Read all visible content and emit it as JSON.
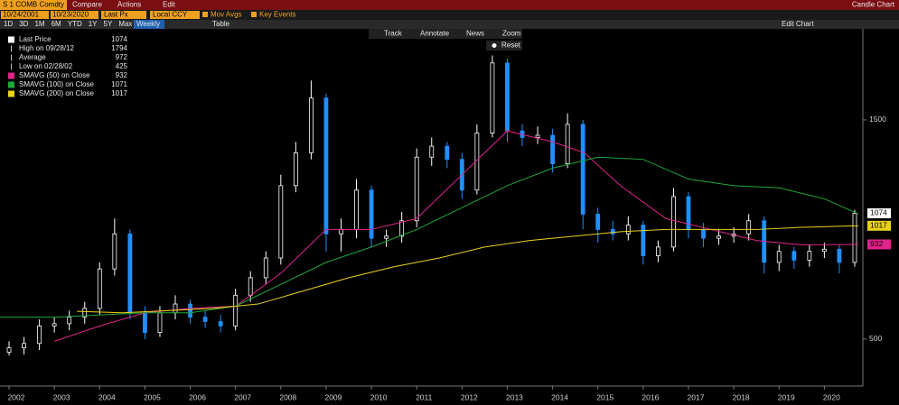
{
  "ui": {
    "ticker": "S 1 COMB Comdty",
    "menus": [
      "Compare",
      "Actions",
      "Edit"
    ],
    "chart_name": "Candle Chart",
    "start_date": "10/24/2001",
    "end_date": "10/23/2020",
    "price_field": "Last Px",
    "currency": "Local CCY",
    "toggles": [
      "Mov Avgs",
      "Key Events"
    ],
    "periods": [
      "1D",
      "3D",
      "1M",
      "6M",
      "YTD",
      "1Y",
      "5Y",
      "Max"
    ],
    "frequency": "Weekly",
    "table": "Table",
    "edit_chart": "Edit Chart",
    "tools": [
      "Track",
      "Annotate",
      "News",
      "Zoom"
    ],
    "reset": "Reset"
  },
  "chart_data": {
    "type": "candlestick",
    "candles": {
      "name": "Last Price",
      "up_color": "#ffffff",
      "down_color": "#1e90ff",
      "x": [
        2002.0,
        2002.33,
        2002.67,
        2003.0,
        2003.33,
        2003.67,
        2004.0,
        2004.33,
        2004.67,
        2005.0,
        2005.33,
        2005.67,
        2006.0,
        2006.33,
        2006.67,
        2007.0,
        2007.33,
        2007.67,
        2008.0,
        2008.33,
        2008.67,
        2009.0,
        2009.33,
        2009.67,
        2010.0,
        2010.33,
        2010.67,
        2011.0,
        2011.33,
        2011.67,
        2012.0,
        2012.33,
        2012.67,
        2013.0,
        2013.33,
        2013.67,
        2014.0,
        2014.33,
        2014.67,
        2015.0,
        2015.33,
        2015.67,
        2016.0,
        2016.33,
        2016.67,
        2017.0,
        2017.33,
        2017.67,
        2018.0,
        2018.33,
        2018.67,
        2019.0,
        2019.33,
        2019.67,
        2020.0,
        2020.33,
        2020.67
      ],
      "open": [
        440,
        460,
        480,
        560,
        570,
        600,
        640,
        820,
        980,
        620,
        530,
        620,
        660,
        600,
        580,
        560,
        700,
        780,
        870,
        1200,
        1350,
        1600,
        980,
        1000,
        1180,
        960,
        970,
        1040,
        1330,
        1380,
        1320,
        1180,
        1440,
        1760,
        1450,
        1420,
        1430,
        1300,
        1480,
        1070,
        1000,
        980,
        1020,
        880,
        920,
        1150,
        1000,
        960,
        970,
        980,
        1040,
        850,
        900,
        860,
        900,
        910,
        850
      ],
      "high": [
        490,
        510,
        590,
        600,
        630,
        670,
        850,
        1050,
        1000,
        650,
        650,
        700,
        680,
        630,
        610,
        730,
        810,
        900,
        1250,
        1400,
        1680,
        1620,
        1050,
        1230,
        1200,
        1000,
        1080,
        1370,
        1420,
        1400,
        1350,
        1480,
        1794,
        1780,
        1480,
        1470,
        1460,
        1530,
        1500,
        1100,
        1040,
        1060,
        1040,
        950,
        1190,
        1170,
        1030,
        1000,
        1010,
        1070,
        1060,
        930,
        920,
        930,
        940,
        930,
        1090
      ],
      "low": [
        425,
        430,
        450,
        530,
        540,
        570,
        610,
        790,
        590,
        500,
        510,
        590,
        570,
        550,
        530,
        540,
        670,
        750,
        840,
        1170,
        1320,
        900,
        900,
        960,
        920,
        920,
        940,
        1010,
        1290,
        1280,
        1140,
        1160,
        1420,
        1400,
        1380,
        1390,
        1260,
        1280,
        1000,
        940,
        950,
        950,
        840,
        850,
        900,
        960,
        920,
        930,
        940,
        950,
        800,
        810,
        820,
        830,
        870,
        800,
        830
      ],
      "close": [
        460,
        480,
        560,
        570,
        600,
        640,
        820,
        980,
        620,
        530,
        620,
        660,
        600,
        580,
        560,
        700,
        780,
        870,
        1200,
        1350,
        1600,
        980,
        1000,
        1180,
        960,
        970,
        1040,
        1330,
        1380,
        1320,
        1180,
        1440,
        1760,
        1450,
        1420,
        1430,
        1300,
        1480,
        1070,
        1000,
        980,
        1020,
        880,
        920,
        1150,
        1000,
        960,
        970,
        980,
        1040,
        850,
        900,
        860,
        900,
        910,
        850,
        1074
      ]
    },
    "stats": {
      "high_label": "High on 09/28/12",
      "average_label": "Average",
      "average": 972,
      "low_label": "Low on 02/28/02"
    },
    "series": [
      {
        "name": "SMAVG (50)  on Close",
        "color": "#e0248c",
        "x": [
          2003.0,
          2004.0,
          2005.0,
          2006.0,
          2007.0,
          2008.0,
          2009.0,
          2010.0,
          2011.0,
          2012.0,
          2013.0,
          2014.0,
          2014.7,
          2015.5,
          2016.5,
          2017.5,
          2018.5,
          2019.5,
          2020.75
        ],
        "values": [
          490,
          560,
          620,
          640,
          650,
          800,
          1000,
          1000,
          1050,
          1250,
          1450,
          1400,
          1350,
          1200,
          1050,
          1000,
          950,
          930,
          932
        ]
      },
      {
        "name": "SMAVG (100)  on Close",
        "color": "#1fa83a",
        "x": [
          2001.8,
          2003.0,
          2004.0,
          2005.0,
          2006.0,
          2007.0,
          2008.0,
          2009.0,
          2010.0,
          2011.0,
          2012.0,
          2013.0,
          2014.0,
          2015.0,
          2016.0,
          2017.0,
          2018.0,
          2019.0,
          2020.0,
          2020.75
        ],
        "values": [
          600,
          600,
          610,
          620,
          620,
          650,
          750,
          850,
          920,
          1000,
          1100,
          1200,
          1280,
          1330,
          1320,
          1230,
          1200,
          1190,
          1140,
          1071
        ]
      },
      {
        "name": "SMAVG (200)  on Close",
        "color": "#e8d21a",
        "x": [
          2003.5,
          2004.5,
          2005.5,
          2006.5,
          2007.5,
          2008.5,
          2009.5,
          2010.5,
          2011.5,
          2012.5,
          2013.5,
          2014.5,
          2015.5,
          2016.5,
          2017.5,
          2018.5,
          2019.5,
          2020.75
        ],
        "values": [
          627,
          620,
          630,
          640,
          660,
          720,
          780,
          830,
          870,
          920,
          950,
          970,
          990,
          1000,
          1000,
          1000,
          1010,
          1017
        ]
      }
    ],
    "xlim": [
      2001.8,
      2020.85
    ],
    "xticks": [
      2002,
      2003,
      2004,
      2005,
      2006,
      2007,
      2008,
      2009,
      2010,
      2011,
      2012,
      2013,
      2014,
      2015,
      2016,
      2017,
      2018,
      2019,
      2020
    ],
    "ylim": [
      298,
      1862
    ],
    "yticks": [
      500,
      1500
    ],
    "legend": "top-left"
  }
}
